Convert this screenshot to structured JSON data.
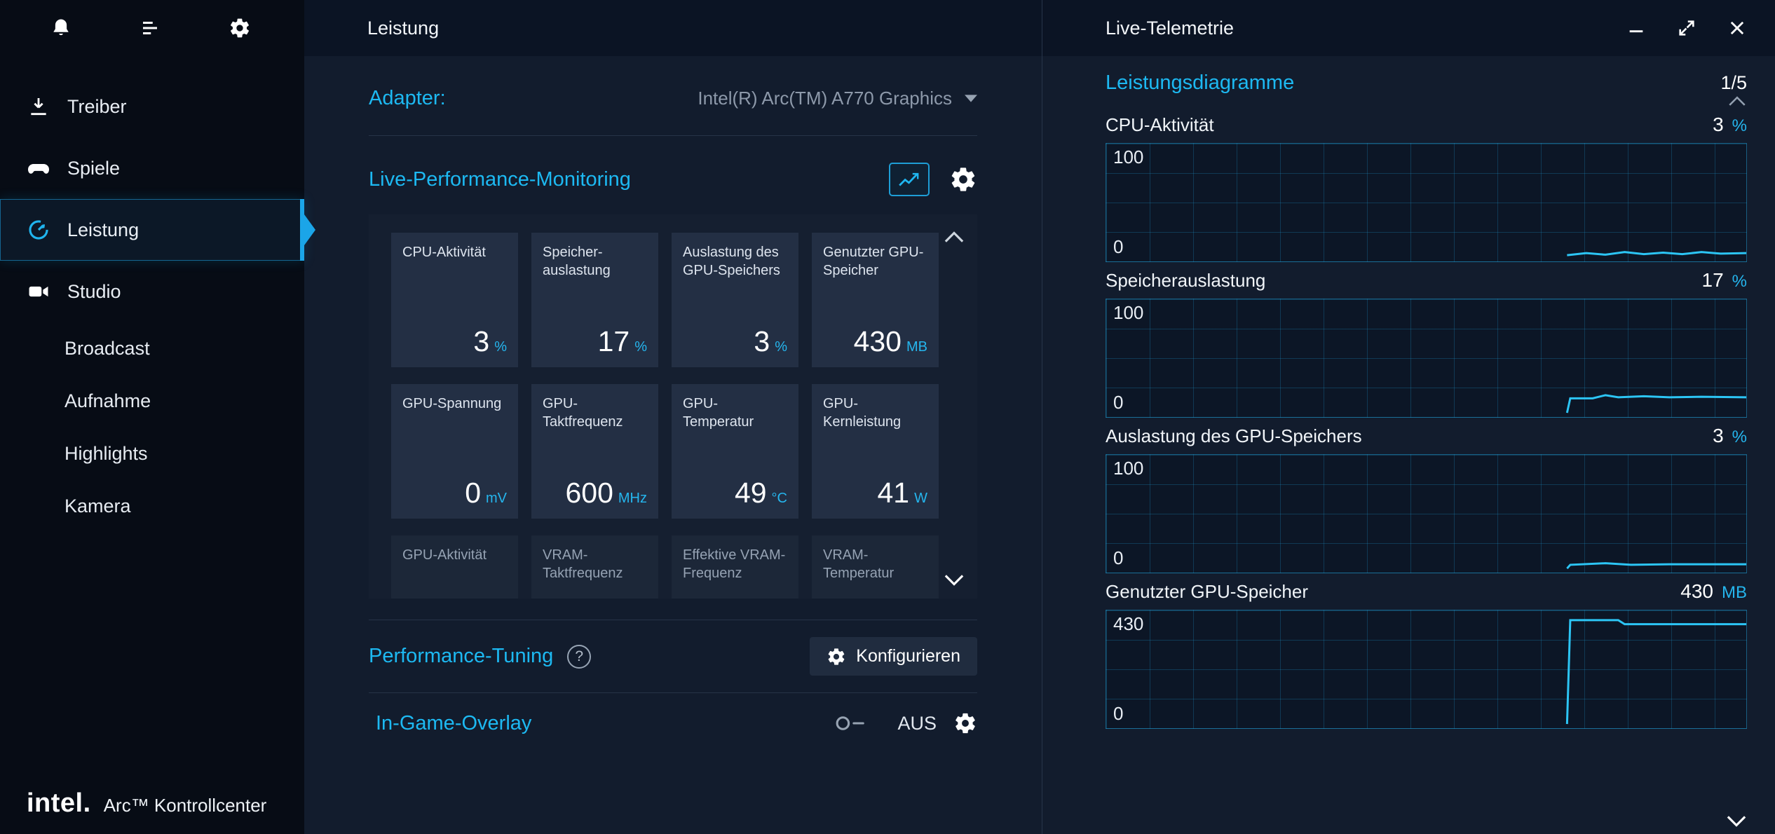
{
  "colors": {
    "accent": "#1db9f2",
    "unit_color": "#25b6ee",
    "line_color": "#2cc5f5",
    "active_glow": "#1ba5e8"
  },
  "sidebar": {
    "top_icons": [
      "bell-icon",
      "menu-icon",
      "settings-gear-icon"
    ],
    "items": [
      {
        "label": "Treiber",
        "icon": "download-icon",
        "active": false
      },
      {
        "label": "Spiele",
        "icon": "gamepad-icon",
        "active": false
      },
      {
        "label": "Leistung",
        "icon": "performance-gauge-icon",
        "active": true
      },
      {
        "label": "Studio",
        "icon": "video-camera-icon",
        "active": false
      }
    ],
    "sub_items": [
      {
        "label": "Broadcast"
      },
      {
        "label": "Aufnahme"
      },
      {
        "label": "Highlights"
      },
      {
        "label": "Kamera"
      }
    ],
    "footer": {
      "brand": "intel.",
      "product": "Arc™ Kontrollcenter"
    }
  },
  "performance_panel": {
    "title": "Leistung",
    "adapter": {
      "label": "Adapter:",
      "value": "Intel(R) Arc(TM) A770 Graphics"
    },
    "monitoring": {
      "title": "Live-Performance-Monitoring",
      "icons": [
        "line-chart-icon",
        "gear-icon"
      ]
    },
    "tiles": [
      {
        "label": "CPU-Aktivität",
        "value": "3",
        "unit": "%"
      },
      {
        "label": "Speicher-auslastung",
        "value": "17",
        "unit": "%"
      },
      {
        "label": "Auslastung des GPU-Speichers",
        "value": "3",
        "unit": "%"
      },
      {
        "label": "Genutzter GPU-Speicher",
        "value": "430",
        "unit": "MB"
      },
      {
        "label": "GPU-Spannung",
        "value": "0",
        "unit": "mV"
      },
      {
        "label": "GPU-Taktfrequenz",
        "value": "600",
        "unit": "MHz"
      },
      {
        "label": "GPU-Temperatur",
        "value": "49",
        "unit": "°C"
      },
      {
        "label": "GPU-Kernleistung",
        "value": "41",
        "unit": "W"
      },
      {
        "label": "GPU-Aktivität"
      },
      {
        "label": "VRAM-Taktfrequenz"
      },
      {
        "label": "Effektive VRAM-Frequenz"
      },
      {
        "label": "VRAM-Temperatur"
      }
    ],
    "tuning": {
      "title": "Performance-Tuning",
      "help_icon": "question-icon",
      "configure_label": "Konfigurieren"
    },
    "overlay": {
      "title": "In-Game-Overlay",
      "state": "AUS",
      "toggle": "off"
    }
  },
  "telemetry_panel": {
    "title": "Live-Telemetrie",
    "window_controls": [
      "minimize-icon",
      "resize-icon",
      "close-icon"
    ],
    "section_title": "Leistungsdiagramme",
    "page_indicator": "1/5"
  },
  "chart_data": [
    {
      "type": "line",
      "title": "CPU-Aktivität",
      "value": 3,
      "unit": "%",
      "ylim": [
        0,
        100
      ],
      "ymax_label": "100",
      "ymin_label": "0",
      "grid": true,
      "points": [
        [
          0.72,
          2
        ],
        [
          0.75,
          4
        ],
        [
          0.78,
          2.5
        ],
        [
          0.81,
          5
        ],
        [
          0.84,
          3
        ],
        [
          0.87,
          4.5
        ],
        [
          0.9,
          3
        ],
        [
          0.93,
          5
        ],
        [
          0.96,
          3.5
        ],
        [
          1,
          4
        ]
      ]
    },
    {
      "type": "line",
      "title": "Speicherauslastung",
      "value": 17,
      "unit": "%",
      "ylim": [
        0,
        100
      ],
      "ymax_label": "100",
      "ymin_label": "0",
      "grid": true,
      "points": [
        [
          0.72,
          0
        ],
        [
          0.725,
          14
        ],
        [
          0.76,
          14
        ],
        [
          0.78,
          17
        ],
        [
          0.8,
          15
        ],
        [
          0.84,
          16
        ],
        [
          0.88,
          15
        ],
        [
          0.93,
          15.5
        ],
        [
          1,
          15
        ]
      ]
    },
    {
      "type": "line",
      "title": "Auslastung des GPU-Speichers",
      "value": 3,
      "unit": "%",
      "ylim": [
        0,
        100
      ],
      "ymax_label": "100",
      "ymin_label": "0",
      "grid": true,
      "points": [
        [
          0.72,
          0
        ],
        [
          0.725,
          3.5
        ],
        [
          0.78,
          5
        ],
        [
          0.82,
          3.5
        ],
        [
          0.88,
          4
        ],
        [
          1,
          4
        ]
      ]
    },
    {
      "type": "line",
      "title": "Genutzter GPU-Speicher",
      "value": 430,
      "unit": "MB",
      "ylim": [
        0,
        430
      ],
      "ymax_label": "430",
      "ymin_label": "0",
      "grid": true,
      "points": [
        [
          0.72,
          0
        ],
        [
          0.725,
          430
        ],
        [
          0.8,
          430
        ],
        [
          0.81,
          413
        ],
        [
          1,
          413
        ]
      ]
    }
  ]
}
